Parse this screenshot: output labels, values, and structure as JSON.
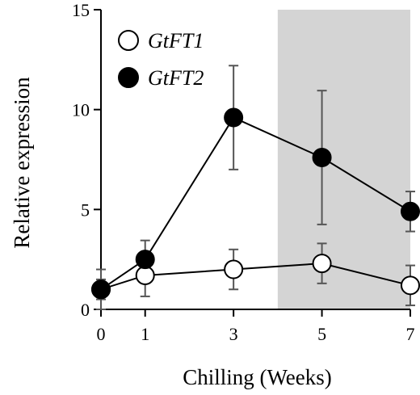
{
  "chart_data": {
    "type": "line",
    "xlabel": "Chilling (Weeks)",
    "ylabel": "Relative expression",
    "x": [
      0,
      1,
      3,
      5,
      7
    ],
    "x_tick_labels": [
      "0",
      "1",
      "3",
      "5",
      "7"
    ],
    "y_ticks": [
      0,
      5,
      10,
      15
    ],
    "y_tick_labels": [
      "0",
      "5",
      "10",
      "15"
    ],
    "ylim": [
      0,
      15
    ],
    "grid": false,
    "legend_position": "top-left",
    "shaded_region": {
      "x_from_between": [
        3,
        5
      ],
      "x_to": 7,
      "color": "#d4d4d4"
    },
    "series": [
      {
        "name": "GtFT1",
        "marker": "open-circle",
        "values": [
          1.0,
          1.7,
          2.0,
          2.3,
          1.2
        ],
        "error": [
          1.0,
          1.05,
          1.0,
          1.0,
          1.0
        ]
      },
      {
        "name": "GtFT2",
        "marker": "filled-circle",
        "values": [
          1.0,
          2.5,
          9.6,
          7.6,
          4.9
        ],
        "error": [
          0.5,
          0.95,
          2.6,
          3.35,
          1.0
        ]
      }
    ]
  }
}
